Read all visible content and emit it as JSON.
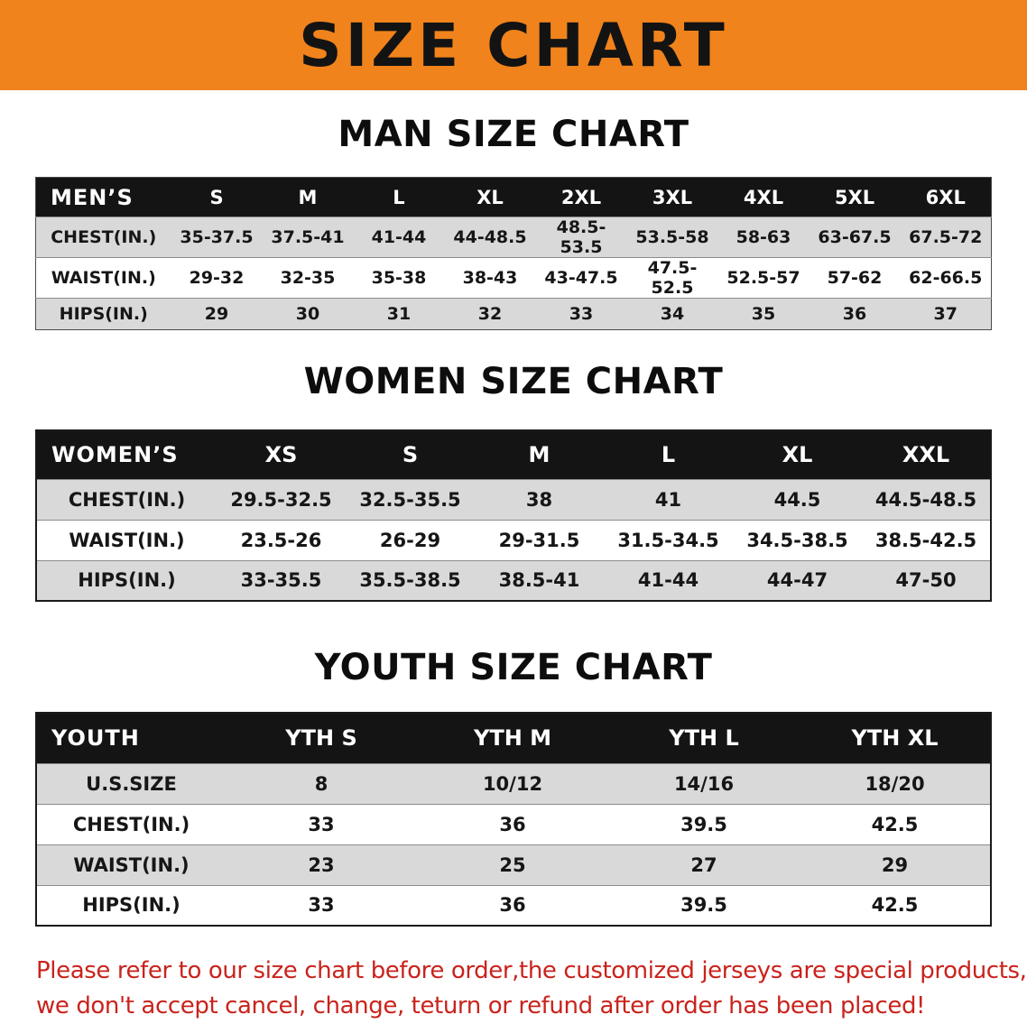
{
  "banner": {
    "title": "SIZE CHART",
    "background_color": "#f0831c"
  },
  "chart_data": [
    {
      "type": "table",
      "title": "MAN SIZE CHART",
      "corner_label": "MEN’S",
      "columns": [
        "S",
        "M",
        "L",
        "XL",
        "2XL",
        "3XL",
        "4XL",
        "5XL",
        "6XL"
      ],
      "rows": [
        {
          "label": "CHEST(IN.)",
          "values": [
            "35-37.5",
            "37.5-41",
            "41-44",
            "44-48.5",
            "48.5-53.5",
            "53.5-58",
            "58-63",
            "63-67.5",
            "67.5-72"
          ]
        },
        {
          "label": "WAIST(IN.)",
          "values": [
            "29-32",
            "32-35",
            "35-38",
            "38-43",
            "43-47.5",
            "47.5-52.5",
            "52.5-57",
            "57-62",
            "62-66.5"
          ]
        },
        {
          "label": "HIPS(IN.)",
          "values": [
            "29",
            "30",
            "31",
            "32",
            "33",
            "34",
            "35",
            "36",
            "37"
          ]
        }
      ]
    },
    {
      "type": "table",
      "title": "WOMEN SIZE CHART",
      "corner_label": "WOMEN’S",
      "columns": [
        "XS",
        "S",
        "M",
        "L",
        "XL",
        "XXL"
      ],
      "rows": [
        {
          "label": "CHEST(IN.)",
          "values": [
            "29.5-32.5",
            "32.5-35.5",
            "38",
            "41",
            "44.5",
            "44.5-48.5"
          ]
        },
        {
          "label": "WAIST(IN.)",
          "values": [
            "23.5-26",
            "26-29",
            "29-31.5",
            "31.5-34.5",
            "34.5-38.5",
            "38.5-42.5"
          ]
        },
        {
          "label": "HIPS(IN.)",
          "values": [
            "33-35.5",
            "35.5-38.5",
            "38.5-41",
            "41-44",
            "44-47",
            "47-50"
          ]
        }
      ]
    },
    {
      "type": "table",
      "title": "YOUTH SIZE CHART",
      "corner_label": "YOUTH",
      "columns": [
        "YTH S",
        "YTH M",
        "YTH L",
        "YTH XL"
      ],
      "rows": [
        {
          "label": "U.S.SIZE",
          "values": [
            "8",
            "10/12",
            "14/16",
            "18/20"
          ]
        },
        {
          "label": "CHEST(IN.)",
          "values": [
            "33",
            "36",
            "39.5",
            "42.5"
          ]
        },
        {
          "label": "WAIST(IN.)",
          "values": [
            "23",
            "25",
            "27",
            "29"
          ]
        },
        {
          "label": "HIPS(IN.)",
          "values": [
            "33",
            "36",
            "39.5",
            "42.5"
          ]
        }
      ]
    }
  ],
  "disclaimer": {
    "color": "#c9231c",
    "line1": "Please refer to our size chart before order,the customized jerseys are special products,",
    "line2": "we don't accept cancel, change, teturn or refund after order has been placed!"
  }
}
